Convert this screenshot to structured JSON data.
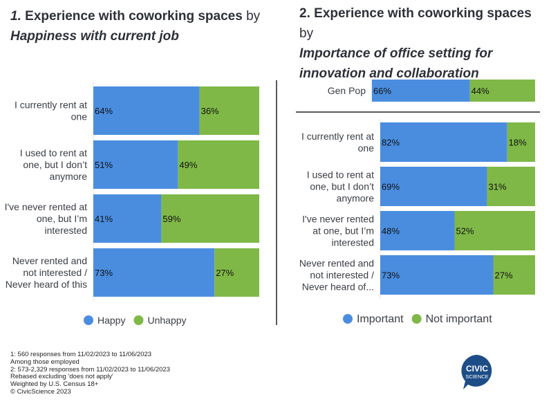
{
  "colors": {
    "positive": "#4a8ddf",
    "negative": "#7fb847",
    "logo": "#1d4d86"
  },
  "titles": {
    "chart1": {
      "number": "1.",
      "bold": "Experience with coworking spaces",
      "by": "by",
      "subtitle": "Happiness with current job"
    },
    "chart2": {
      "number": "2.",
      "bold": "Experience with coworking spaces",
      "by": "by",
      "subtitle": "Importance of office setting for innovation and collaboration"
    }
  },
  "chart_data": [
    {
      "type": "bar",
      "orientation": "horizontal",
      "stacked": true,
      "title": "1. Experience with coworking spaces by Happiness with current job",
      "categories": [
        [
          "I currently rent at",
          "one"
        ],
        [
          "I used to rent at",
          "one, but I don’t",
          "anymore"
        ],
        [
          "I've never rented at",
          "one, but I’m",
          "interested"
        ],
        [
          "Never rented and",
          "not interested /",
          "Never heard of this"
        ]
      ],
      "series": [
        {
          "name": "Happy",
          "values": [
            64,
            51,
            41,
            73
          ]
        },
        {
          "name": "Unhappy",
          "values": [
            36,
            49,
            59,
            27
          ]
        }
      ],
      "unit": "%",
      "xlim": [
        0,
        100
      ],
      "legend": "bottom"
    },
    {
      "type": "bar",
      "orientation": "horizontal",
      "stacked": true,
      "title": "2. Experience with coworking spaces by Importance of office setting for innovation and collaboration",
      "baseline": {
        "category": "Gen Pop",
        "values": [
          66,
          44
        ]
      },
      "categories": [
        [
          "I currently rent at",
          "one"
        ],
        [
          "I used to rent at",
          "one, but I don’t",
          "anymore"
        ],
        [
          "I've never rented",
          "at one, but I’m",
          "interested"
        ],
        [
          "Never rented and",
          "not interested /",
          "Never heard of..."
        ]
      ],
      "series": [
        {
          "name": "Important",
          "values": [
            82,
            69,
            48,
            73
          ]
        },
        {
          "name": "Not important",
          "values": [
            18,
            31,
            52,
            27
          ]
        }
      ],
      "unit": "%",
      "xlim": [
        0,
        100
      ],
      "legend": "bottom"
    }
  ],
  "footnote": [
    "1: 560 responses from 11/02/2023 to 11/06/2023",
    "Among those employed",
    "2: 573-2,329 responses from 11/02/2023 to 11/06/2023",
    "Rebased excluding 'does not apply'",
    "Weighted by U.S. Census 18+",
    "© CivicScience 2023"
  ],
  "logo": {
    "line1": "CIVIC",
    "line2": "SCIENCE"
  }
}
